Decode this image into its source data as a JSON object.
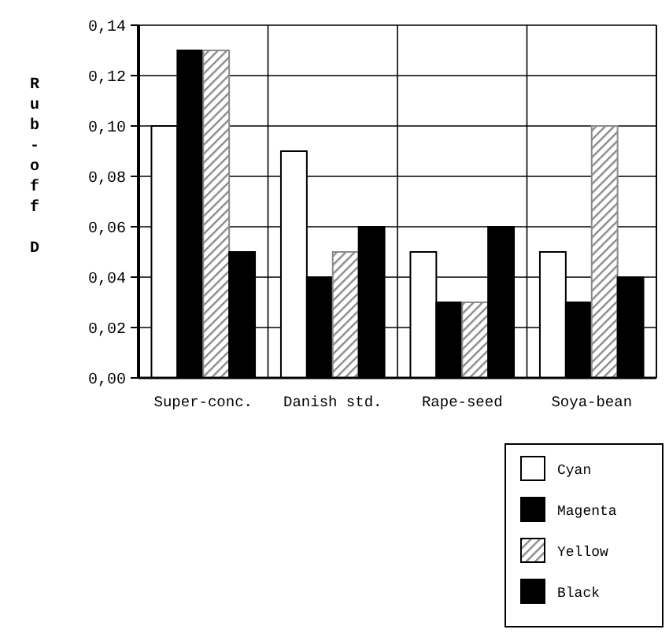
{
  "chart_data": {
    "type": "bar",
    "ylabel": "Rub-off D",
    "categories": [
      "Super-conc.",
      "Danish std.",
      "Rape-seed",
      "Soya-bean"
    ],
    "series": [
      {
        "name": "Cyan",
        "color": "#ffffff",
        "values": [
          0.1,
          0.09,
          0.05,
          0.05
        ]
      },
      {
        "name": "Magenta",
        "color": "#000000",
        "values": [
          0.13,
          0.04,
          0.03,
          0.03
        ]
      },
      {
        "name": "Yellow",
        "color": "#8a8a8a",
        "values": [
          0.13,
          0.05,
          0.03,
          0.1
        ]
      },
      {
        "name": "Black",
        "color": "#000000",
        "values": [
          0.05,
          0.06,
          0.06,
          0.04
        ]
      }
    ],
    "ylim": [
      0,
      0.14
    ],
    "yticks": [
      {
        "value": 0,
        "label": "0,00"
      },
      {
        "value": 0.02,
        "label": "0,02"
      },
      {
        "value": 0.04,
        "label": "0,04"
      },
      {
        "value": 0.06,
        "label": "0,06"
      },
      {
        "value": 0.08,
        "label": "0,08"
      },
      {
        "value": 0.1,
        "label": "0,10"
      },
      {
        "value": 0.12,
        "label": "0,12"
      },
      {
        "value": 0.14,
        "label": "0,14"
      }
    ],
    "grid": true,
    "legend": "bottom right"
  }
}
